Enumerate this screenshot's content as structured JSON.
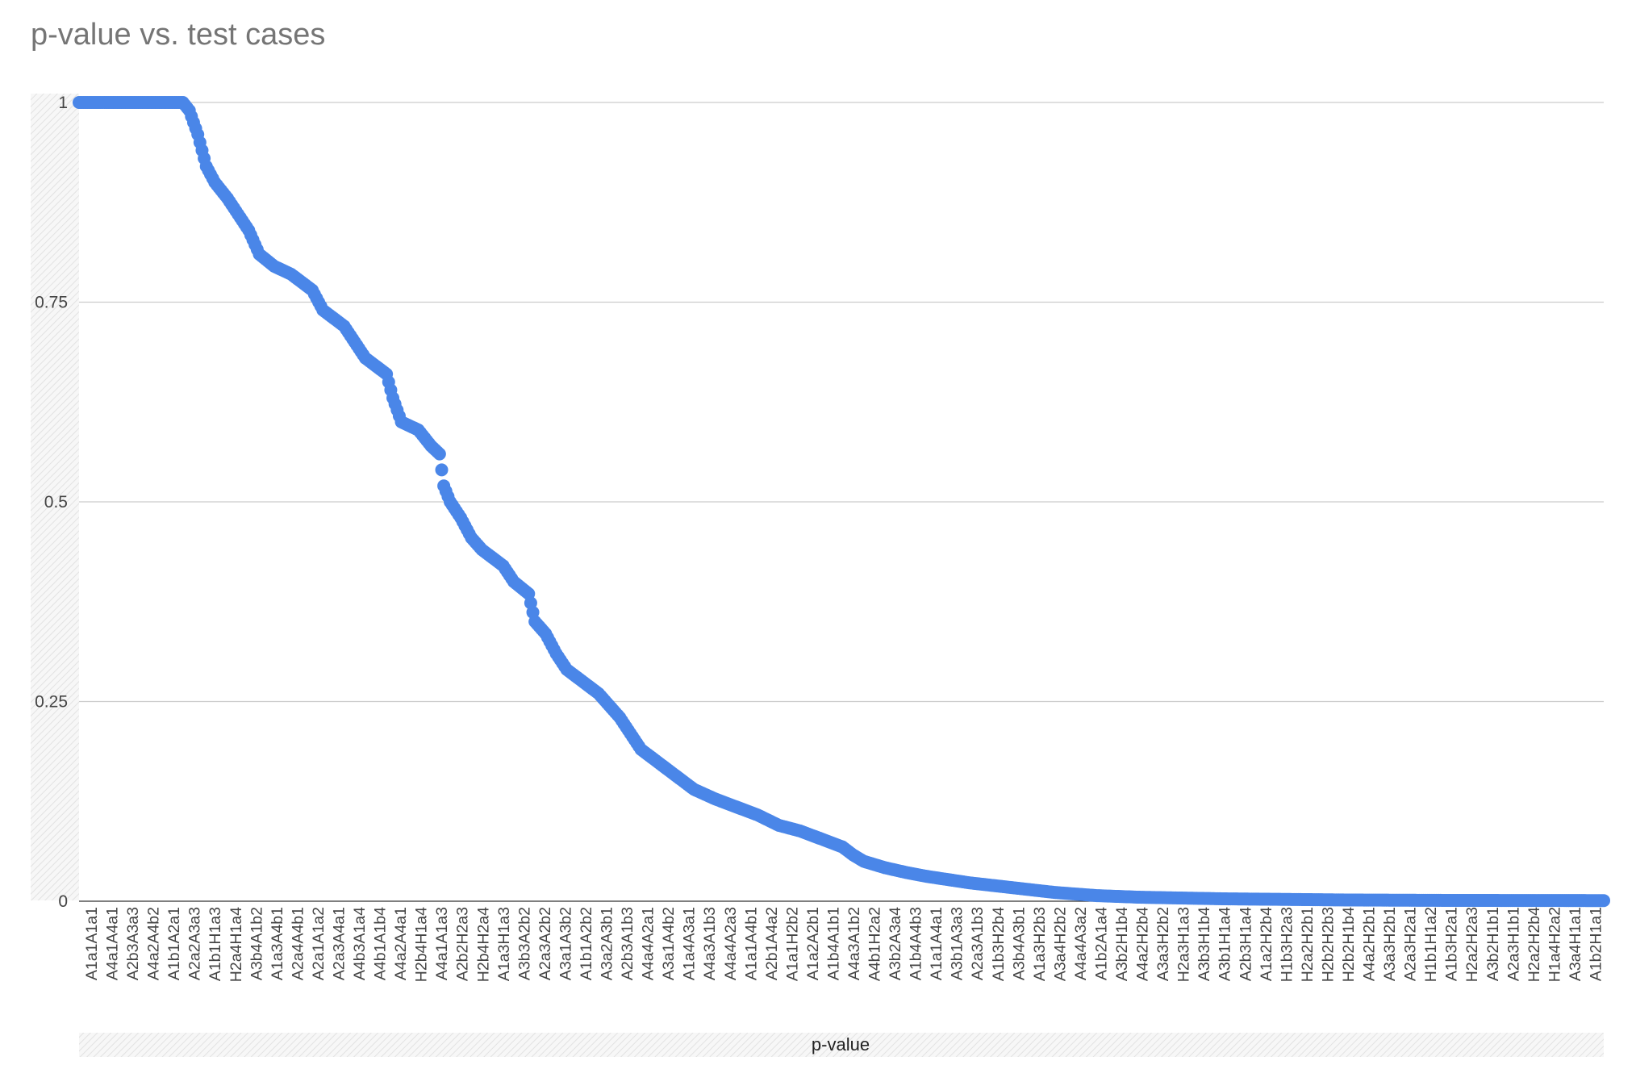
{
  "chart_data": {
    "type": "scatter",
    "title": "p-value vs. test cases",
    "xlabel": "p-value",
    "ylabel": "",
    "ylim": [
      0,
      1
    ],
    "yticks": [
      0,
      0.25,
      0.5,
      0.75,
      1
    ],
    "ytick_labels": [
      "0",
      "0.25",
      "0.5",
      "0.75",
      "1"
    ],
    "grid": "horizontal",
    "legend": "none",
    "n_points": 720,
    "categories_labeled": [
      "A1a1A1a1",
      "A4a1A4a1",
      "A2b3A3a3",
      "A4a2A4b2",
      "A1b1A2a1",
      "A2a2A3a3",
      "A1b1H1a3",
      "H2a4H1a4",
      "A3b4A1b2",
      "A1a3A4b1",
      "A2a4A4b1",
      "A2a1A1a2",
      "A2a3A4a1",
      "A4b3A1a4",
      "A4b1A1b4",
      "A4a2A4a1",
      "H2b4H1a4",
      "A4a1A1a3",
      "A2b2H2a3",
      "H2b4H2a4",
      "A1a3H1a3",
      "A3b3A2b2",
      "A2a3A2b2",
      "A3a1A3b2",
      "A1b1A2b2",
      "A3a2A3b1",
      "A2b3A1b3",
      "A4a4A2a1",
      "A3a1A4b2",
      "A1a4A3a1",
      "A4a3A1b3",
      "A4a4A2a3",
      "A1a1A4b1",
      "A2b1A4a2",
      "A1a1H2b2",
      "A1a2A2b1",
      "A1b4A1b1",
      "A4a3A1b2",
      "A4b1H2a2",
      "A3b2A3a4",
      "A1b4A4b3",
      "A1a1A4a1",
      "A3b1A3a3",
      "A2a3A1b3",
      "A1b3H2b4",
      "A3b4A3b1",
      "A1a3H2b3",
      "A3a4H2b2",
      "A4a4A3a2",
      "A1b2A1a4",
      "A3b2H1b4",
      "A4a2H2b4",
      "A3a3H2b2",
      "H2a3H1a3",
      "A3b3H1b4",
      "A3b1H1a4",
      "A2b3H1a4",
      "A1a2H2b4",
      "H1b3H2a3",
      "H2a2H2b1",
      "H2b2H2b3",
      "H2b2H1b4",
      "A4a2H2b1",
      "A3a3H2b1",
      "A2a3H2a1",
      "H1b1H1a2",
      "A1b3H2a1",
      "H2a2H2a3",
      "A3b2H1b1",
      "A2a3H1b1",
      "H2a2H2b4",
      "H1a4H2a2",
      "A3a4H1a1",
      "A1b2H1a1"
    ],
    "series": [
      {
        "color": "#4a86e8",
        "curve_xy": [
          [
            0,
            1
          ],
          [
            49,
            1
          ],
          [
            52,
            0.99
          ],
          [
            56,
            0.96
          ],
          [
            60,
            0.92
          ],
          [
            64,
            0.9
          ],
          [
            70,
            0.88
          ],
          [
            75,
            0.86
          ],
          [
            80,
            0.84
          ],
          [
            85,
            0.81
          ],
          [
            92,
            0.795
          ],
          [
            100,
            0.785
          ],
          [
            110,
            0.765
          ],
          [
            115,
            0.74
          ],
          [
            125,
            0.72
          ],
          [
            130,
            0.7
          ],
          [
            135,
            0.68
          ],
          [
            140,
            0.67
          ],
          [
            145,
            0.66
          ],
          [
            148,
            0.63
          ],
          [
            152,
            0.6
          ],
          [
            160,
            0.59
          ],
          [
            166,
            0.57
          ],
          [
            170,
            0.56
          ],
          [
            172,
            0.52
          ],
          [
            175,
            0.5
          ],
          [
            180,
            0.48
          ],
          [
            185,
            0.455
          ],
          [
            190,
            0.44
          ],
          [
            200,
            0.42
          ],
          [
            205,
            0.4
          ],
          [
            212,
            0.385
          ],
          [
            215,
            0.35
          ],
          [
            220,
            0.335
          ],
          [
            225,
            0.31
          ],
          [
            230,
            0.29
          ],
          [
            235,
            0.28
          ],
          [
            245,
            0.26
          ],
          [
            255,
            0.23
          ],
          [
            260,
            0.21
          ],
          [
            265,
            0.19
          ],
          [
            270,
            0.18
          ],
          [
            280,
            0.16
          ],
          [
            290,
            0.14
          ],
          [
            300,
            0.128
          ],
          [
            310,
            0.118
          ],
          [
            320,
            0.108
          ],
          [
            330,
            0.095
          ],
          [
            340,
            0.088
          ],
          [
            350,
            0.078
          ],
          [
            360,
            0.068
          ],
          [
            365,
            0.058
          ],
          [
            370,
            0.05
          ],
          [
            380,
            0.042
          ],
          [
            390,
            0.036
          ],
          [
            400,
            0.031
          ],
          [
            410,
            0.027
          ],
          [
            420,
            0.023
          ],
          [
            430,
            0.02
          ],
          [
            440,
            0.017
          ],
          [
            450,
            0.014
          ],
          [
            460,
            0.011
          ],
          [
            470,
            0.009
          ],
          [
            480,
            0.007
          ],
          [
            490,
            0.006
          ],
          [
            500,
            0.005
          ],
          [
            520,
            0.004
          ],
          [
            540,
            0.003
          ],
          [
            560,
            0.0025
          ],
          [
            580,
            0.002
          ],
          [
            600,
            0.0015
          ],
          [
            650,
            0.001
          ],
          [
            719,
            0.0008
          ]
        ]
      }
    ]
  }
}
